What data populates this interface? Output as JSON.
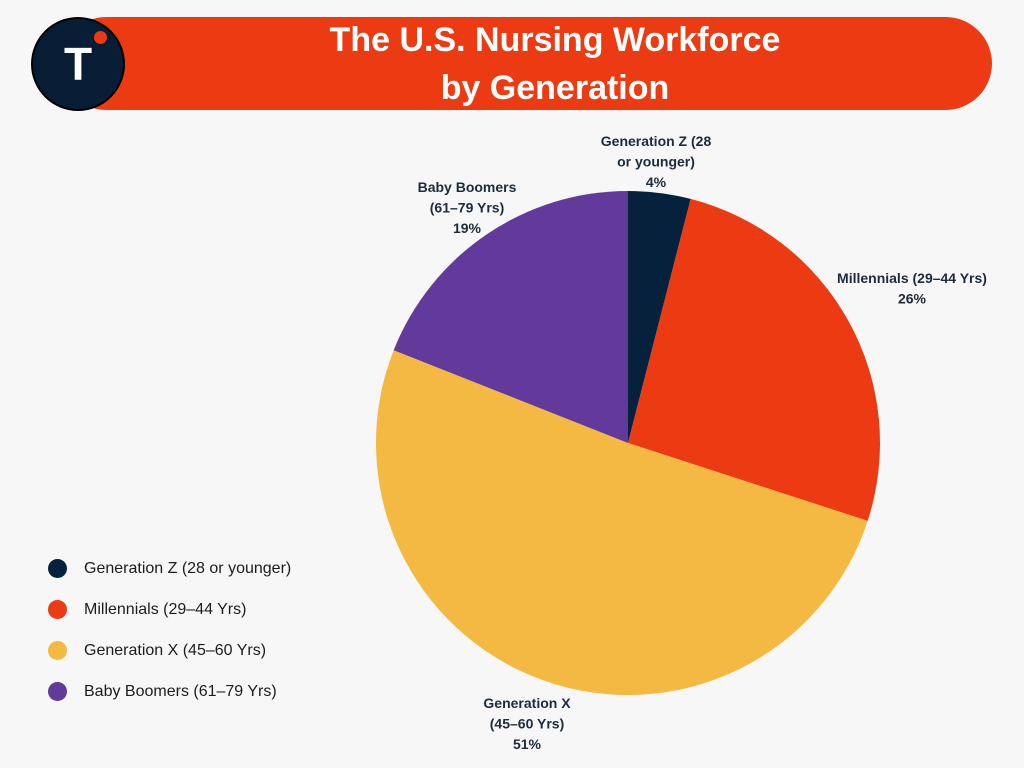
{
  "header": {
    "title_line1": "The U.S. Nursing Workforce",
    "title_line2": "by Generation",
    "logo_letter": "T"
  },
  "colors": {
    "banner": "#ec3a12",
    "logo_bg": "#061d35"
  },
  "chart_data": {
    "type": "pie",
    "title": "The U.S. Nursing Workforce by Generation",
    "legend_position": "left-bottom",
    "slices": [
      {
        "name": "Generation Z (28 or younger)",
        "value": 4,
        "value_label": "4%",
        "label_lines": [
          "Generation Z (28",
          "or younger)"
        ],
        "color": "#06213b"
      },
      {
        "name": "Millennials (29–44 Yrs)",
        "value": 26,
        "value_label": "26%",
        "label_lines": [
          "Millennials (29–44 Yrs)"
        ],
        "color": "#ec3a12"
      },
      {
        "name": "Generation X (45–60 Yrs)",
        "value": 51,
        "value_label": "51%",
        "label_lines": [
          "Generation X",
          "(45–60 Yrs)"
        ],
        "color": "#f4b942"
      },
      {
        "name": "Baby Boomers (61–79 Yrs)",
        "value": 19,
        "value_label": "19%",
        "label_lines": [
          "Baby Boomers",
          "(61–79 Yrs)"
        ],
        "color": "#613a9b"
      }
    ]
  }
}
